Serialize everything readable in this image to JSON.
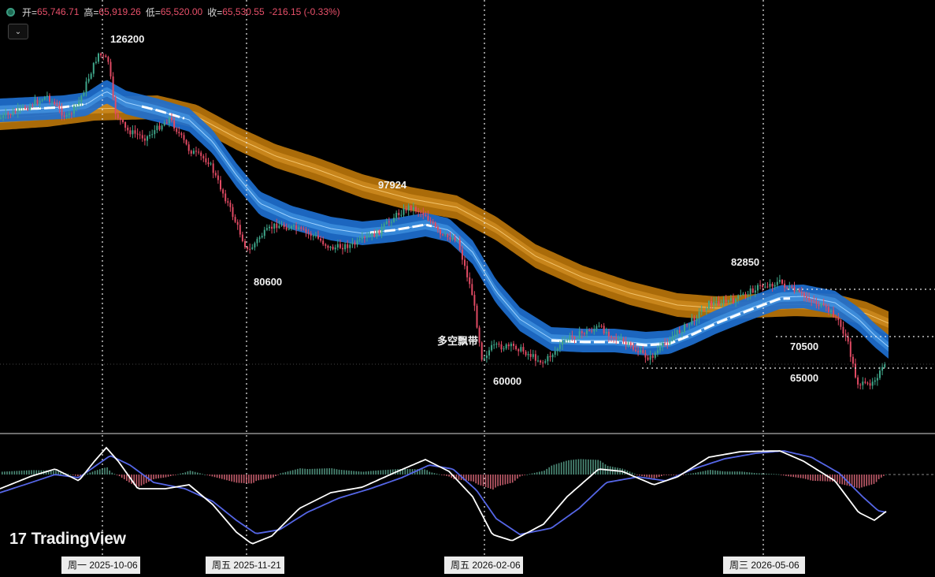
{
  "ohlc": {
    "open_label": "开=",
    "open": "65,746.71",
    "high_label": "高=",
    "high": "65,919.26",
    "low_label": "低=",
    "low": "65,520.00",
    "close_label": "收=",
    "close": "65,530.55",
    "change": "-216.15 (-0.33%)"
  },
  "collapse_icon": "chevron-down-icon",
  "logo_text": "TradingView",
  "chart_data": {
    "type": "candlestick-with-bands-and-macd",
    "colors": {
      "up": "#3fa68a",
      "down": "#e04a63",
      "fast_band": "#2f7fd6",
      "slow_band": "#c8820d",
      "macd_line": "#ffffff",
      "signal_line": "#5566e6"
    },
    "price_levels": [
      {
        "label": "126200",
        "value": 126200,
        "type": "peak"
      },
      {
        "label": "80600",
        "value": 80600,
        "type": "trough"
      },
      {
        "label": "97924",
        "value": 97924,
        "type": "peak"
      },
      {
        "label": "60000",
        "value": 60000,
        "type": "trough"
      },
      {
        "label": "82850",
        "value": 82850,
        "type": "peak"
      },
      {
        "label": "70500",
        "value": 70500,
        "type": "horizontal-line"
      },
      {
        "label": "65000",
        "value": 65000,
        "type": "horizontal-line"
      }
    ],
    "band_label": "多空飘带",
    "date_markers": [
      "周一 2025-10-06",
      "周五 2025-11-21",
      "周五 2026-02-06",
      "周三 2026-05-06"
    ],
    "approx_close_path": [
      {
        "x": "2025-08",
        "y": 114000
      },
      {
        "x": "2025-09",
        "y": 110000
      },
      {
        "x": "2025-10-06",
        "y": 124000
      },
      {
        "x": "2025-10-20",
        "y": 110000
      },
      {
        "x": "2025-11-21",
        "y": 82000
      },
      {
        "x": "2025-12-10",
        "y": 92000
      },
      {
        "x": "2026-01-05",
        "y": 96000
      },
      {
        "x": "2026-01-20",
        "y": 89000
      },
      {
        "x": "2026-02-06",
        "y": 62000
      },
      {
        "x": "2026-03-01",
        "y": 67000
      },
      {
        "x": "2026-04-01",
        "y": 74000
      },
      {
        "x": "2026-05-06",
        "y": 81000
      },
      {
        "x": "2026-05-25",
        "y": 76000
      },
      {
        "x": "2026-06-10",
        "y": 64000
      },
      {
        "x": "2026-06-18",
        "y": 65530
      }
    ],
    "macd": {
      "zero_line": 0,
      "description": "MACD with histogram below price panel"
    }
  }
}
